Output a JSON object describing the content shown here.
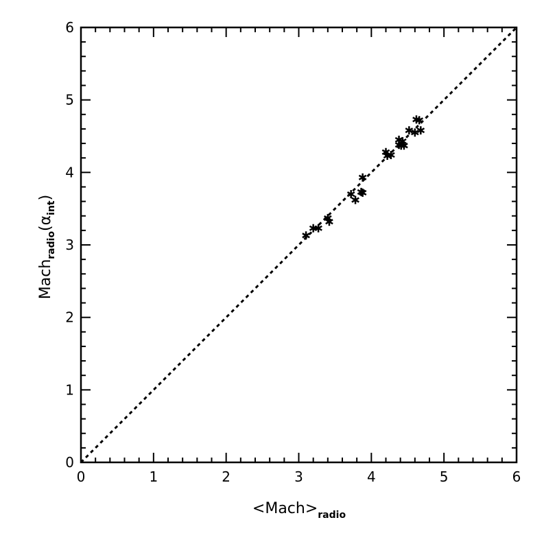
{
  "chart_data": {
    "type": "scatter",
    "title": "",
    "xlabel": {
      "main": "<Mach>",
      "sub": "radio"
    },
    "ylabel": {
      "main": "Mach",
      "sub": "radio",
      "paren_open": "(",
      "greek": "α",
      "greek_sub": "int",
      "paren_close": ")"
    },
    "xlim": [
      0,
      6
    ],
    "ylim": [
      0,
      6
    ],
    "x_ticks": [
      "0",
      "1",
      "2",
      "3",
      "4",
      "5",
      "6"
    ],
    "y_ticks": [
      "0",
      "1",
      "2",
      "3",
      "4",
      "5",
      "6"
    ],
    "grid": false,
    "marker": "asterisk",
    "reference_line": {
      "style": "dashed",
      "from": [
        0,
        0
      ],
      "to": [
        6,
        6
      ]
    },
    "points": [
      [
        3.1,
        3.13
      ],
      [
        3.2,
        3.23
      ],
      [
        3.27,
        3.23
      ],
      [
        3.4,
        3.37
      ],
      [
        3.42,
        3.32
      ],
      [
        3.72,
        3.7
      ],
      [
        3.78,
        3.62
      ],
      [
        3.86,
        3.73
      ],
      [
        3.88,
        3.72
      ],
      [
        3.88,
        3.93
      ],
      [
        4.2,
        4.28
      ],
      [
        4.22,
        4.23
      ],
      [
        4.27,
        4.24
      ],
      [
        4.38,
        4.45
      ],
      [
        4.38,
        4.38
      ],
      [
        4.41,
        4.37
      ],
      [
        4.45,
        4.37
      ],
      [
        4.43,
        4.43
      ],
      [
        4.52,
        4.58
      ],
      [
        4.6,
        4.55
      ],
      [
        4.62,
        4.73
      ],
      [
        4.66,
        4.72
      ],
      [
        4.68,
        4.58
      ]
    ]
  }
}
